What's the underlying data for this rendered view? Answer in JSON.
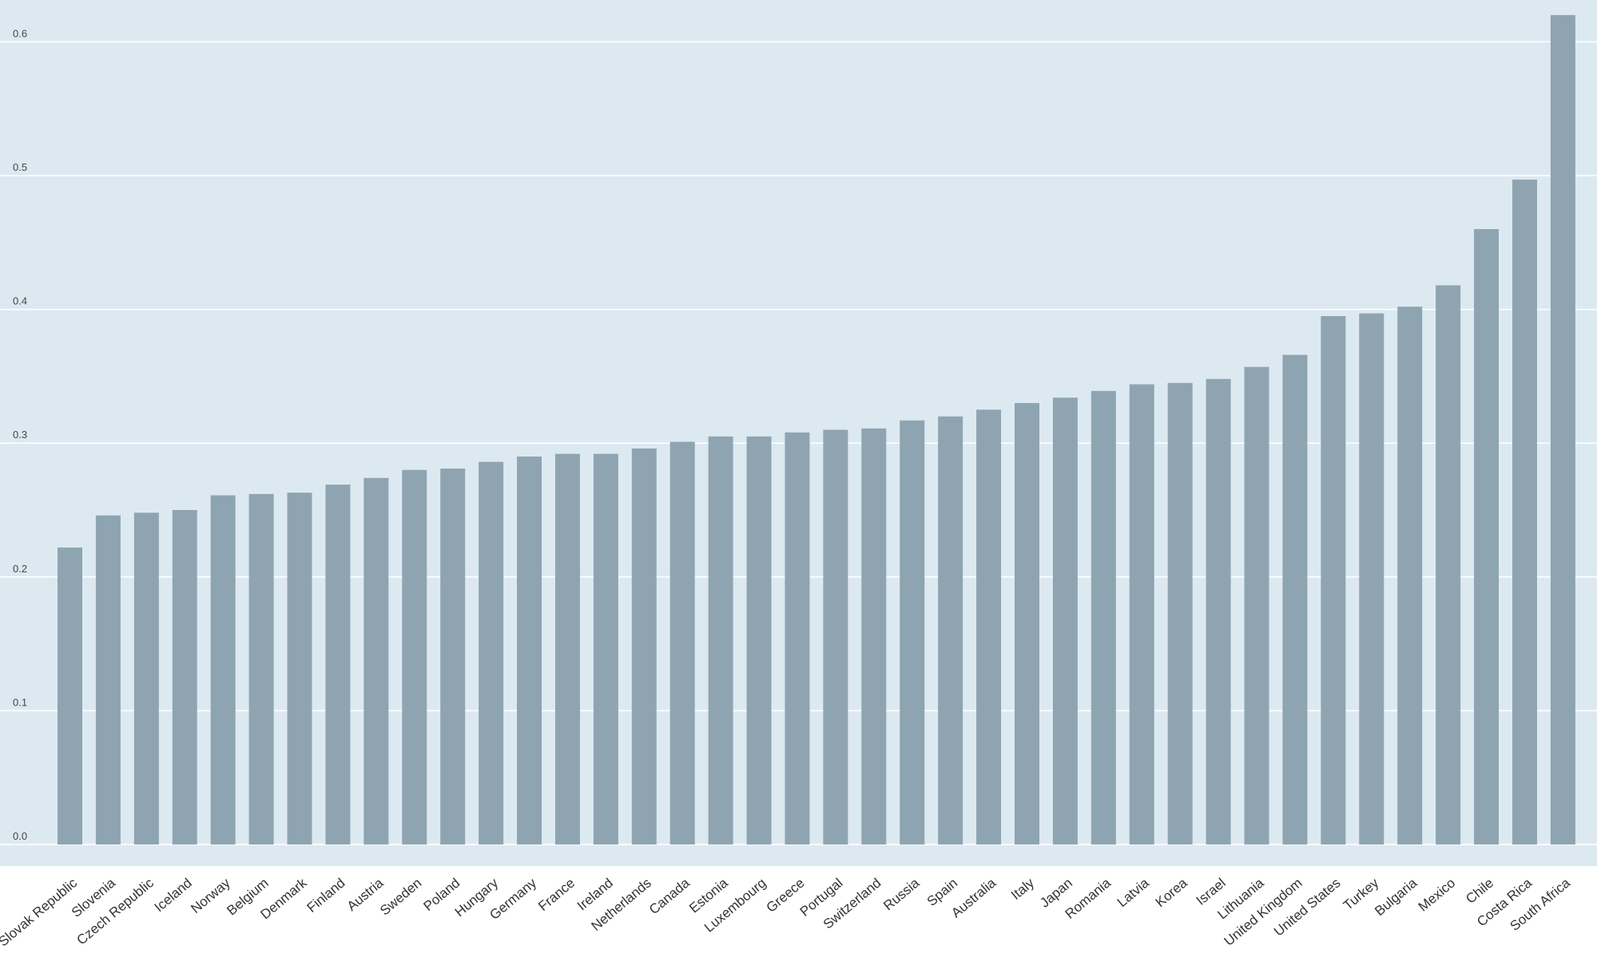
{
  "colors": {
    "plot_background": "#dde9f1",
    "bar": "#8ea5b1",
    "gridline": "#ffffff",
    "tick_text": "#444444",
    "category_text": "#333333"
  },
  "chart_data": {
    "type": "bar",
    "title": "",
    "xlabel": "",
    "ylabel": "",
    "ylim": [
      0,
      0.62
    ],
    "yticks": [
      0.0,
      0.1,
      0.2,
      0.3,
      0.4,
      0.5,
      0.6
    ],
    "ytick_labels": [
      "0.0",
      "0.1",
      "0.2",
      "0.3",
      "0.4",
      "0.5",
      "0.6"
    ],
    "grid": "horizontal",
    "categories": [
      "Slovak Republic",
      "Slovenia",
      "Czech Republic",
      "Iceland",
      "Norway",
      "Belgium",
      "Denmark",
      "Finland",
      "Austria",
      "Sweden",
      "Poland",
      "Hungary",
      "Germany",
      "France",
      "Ireland",
      "Netherlands",
      "Canada",
      "Estonia",
      "Luxembourg",
      "Greece",
      "Portugal",
      "Switzerland",
      "Russia",
      "Spain",
      "Australia",
      "Italy",
      "Japan",
      "Romania",
      "Latvia",
      "Korea",
      "Israel",
      "Lithuania",
      "United Kingdom",
      "United States",
      "Turkey",
      "Bulgaria",
      "Mexico",
      "Chile",
      "Costa Rica",
      "South Africa"
    ],
    "values": [
      0.222,
      0.246,
      0.248,
      0.25,
      0.261,
      0.262,
      0.263,
      0.269,
      0.274,
      0.28,
      0.281,
      0.286,
      0.29,
      0.292,
      0.292,
      0.296,
      0.301,
      0.305,
      0.305,
      0.308,
      0.31,
      0.311,
      0.317,
      0.32,
      0.325,
      0.33,
      0.334,
      0.339,
      0.344,
      0.345,
      0.348,
      0.357,
      0.366,
      0.395,
      0.397,
      0.402,
      0.418,
      0.46,
      0.497,
      0.62
    ]
  }
}
